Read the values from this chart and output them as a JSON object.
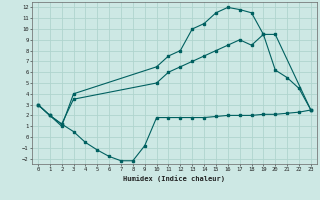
{
  "xlabel": "Humidex (Indice chaleur)",
  "xlim": [
    -0.5,
    23.5
  ],
  "ylim": [
    -2.5,
    12.5
  ],
  "xticks": [
    0,
    1,
    2,
    3,
    4,
    5,
    6,
    7,
    8,
    9,
    10,
    11,
    12,
    13,
    14,
    15,
    16,
    17,
    18,
    19,
    20,
    21,
    22,
    23
  ],
  "yticks": [
    -2,
    -1,
    0,
    1,
    2,
    3,
    4,
    5,
    6,
    7,
    8,
    9,
    10,
    11,
    12
  ],
  "bg_color": "#cde8e4",
  "grid_color": "#b0d4ce",
  "line_color": "#006060",
  "line1_x": [
    0,
    1,
    2,
    3,
    10,
    11,
    12,
    13,
    14,
    15,
    16,
    17,
    18,
    19,
    20,
    21,
    22,
    23
  ],
  "line1_y": [
    3,
    2,
    1,
    4,
    6.5,
    7.5,
    8,
    10,
    10.5,
    11.5,
    12,
    11.8,
    11.5,
    9.5,
    6.2,
    5.5,
    4.5,
    2.5
  ],
  "line2_x": [
    0,
    1,
    2,
    3,
    10,
    11,
    12,
    13,
    14,
    15,
    16,
    17,
    18,
    19,
    20,
    23
  ],
  "line2_y": [
    3,
    2,
    1.2,
    3.5,
    5,
    6,
    6.5,
    7,
    7.5,
    8,
    8.5,
    9,
    8.5,
    9.5,
    9.5,
    2.5
  ],
  "line3_x": [
    0,
    1,
    2,
    3,
    4,
    5,
    6,
    7,
    8,
    9,
    10,
    11,
    12,
    13,
    14,
    15,
    16,
    17,
    18,
    19,
    20,
    21,
    22,
    23
  ],
  "line3_y": [
    3,
    2,
    1.2,
    0.5,
    -0.5,
    -1.2,
    -1.8,
    -2.2,
    -2.2,
    -0.8,
    1.8,
    1.8,
    1.8,
    1.8,
    1.8,
    1.9,
    2.0,
    2.0,
    2.0,
    2.1,
    2.1,
    2.2,
    2.3,
    2.5
  ]
}
